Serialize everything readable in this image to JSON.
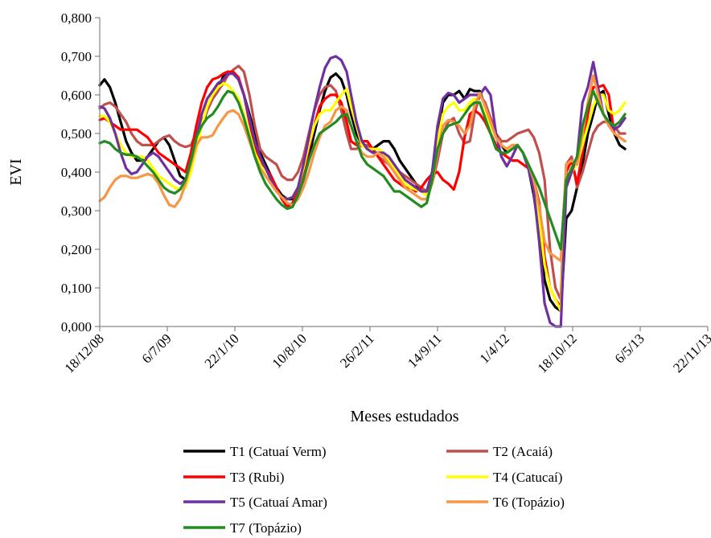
{
  "chart_data": {
    "type": "line",
    "xlabel": "Meses estudados",
    "ylabel": "EVI",
    "ylim": [
      0,
      0.8
    ],
    "yticks": [
      "0,000",
      "0,100",
      "0,200",
      "0,300",
      "0,400",
      "0,500",
      "0,600",
      "0,700",
      "0,800"
    ],
    "xlim": [
      "2008-12-18",
      "2013-11-22"
    ],
    "xticks": [
      "18/12/08",
      "6/7/09",
      "22/1/10",
      "10/8/10",
      "26/2/11",
      "14/9/11",
      "1/4/12",
      "18/10/12",
      "6/5/13",
      "22/11/13"
    ],
    "x_dates": [
      "2008-12-18",
      "2009-01-01",
      "2009-01-17",
      "2009-02-02",
      "2009-02-18",
      "2009-03-06",
      "2009-03-22",
      "2009-04-07",
      "2009-04-23",
      "2009-05-09",
      "2009-05-25",
      "2009-06-10",
      "2009-06-26",
      "2009-07-12",
      "2009-07-28",
      "2009-08-13",
      "2009-08-29",
      "2009-09-14",
      "2009-09-30",
      "2009-10-16",
      "2009-11-01",
      "2009-11-17",
      "2009-12-03",
      "2009-12-19",
      "2010-01-01",
      "2010-01-17",
      "2010-02-02",
      "2010-02-18",
      "2010-03-06",
      "2010-03-22",
      "2010-04-07",
      "2010-04-23",
      "2010-05-09",
      "2010-05-25",
      "2010-06-10",
      "2010-06-26",
      "2010-07-12",
      "2010-07-28",
      "2010-08-13",
      "2010-08-29",
      "2010-09-14",
      "2010-09-30",
      "2010-10-16",
      "2010-11-01",
      "2010-11-17",
      "2010-12-03",
      "2010-12-19",
      "2011-01-01",
      "2011-01-17",
      "2011-02-02",
      "2011-02-18",
      "2011-03-06",
      "2011-03-22",
      "2011-04-07",
      "2011-04-23",
      "2011-05-09",
      "2011-05-25",
      "2011-06-10",
      "2011-06-26",
      "2011-07-12",
      "2011-07-28",
      "2011-08-13",
      "2011-08-29",
      "2011-09-14",
      "2011-09-30",
      "2011-10-16",
      "2011-11-01",
      "2011-11-17",
      "2011-12-03",
      "2011-12-19",
      "2012-01-01",
      "2012-01-17",
      "2012-02-02",
      "2012-02-18",
      "2012-03-05",
      "2012-03-21",
      "2012-04-06",
      "2012-04-22",
      "2012-05-08",
      "2012-05-24",
      "2012-06-09",
      "2012-06-25",
      "2012-07-11",
      "2012-07-27",
      "2012-08-12",
      "2012-08-28",
      "2012-09-13",
      "2012-09-29",
      "2012-10-15",
      "2012-10-31",
      "2012-11-16",
      "2012-12-02",
      "2012-12-18",
      "2013-01-01",
      "2013-01-17",
      "2013-02-02",
      "2013-02-18",
      "2013-03-06",
      "2013-03-22",
      "2013-04-07",
      "2013-04-23",
      "2013-05-09",
      "2013-05-25"
    ],
    "series": [
      {
        "name": "T1  (Catuaí Verm)",
        "color": "#000000",
        "values": [
          0.625,
          0.64,
          0.62,
          0.58,
          0.53,
          0.48,
          0.45,
          0.43,
          0.43,
          0.44,
          0.46,
          0.48,
          0.49,
          0.47,
          0.43,
          0.39,
          0.38,
          0.42,
          0.47,
          0.52,
          0.56,
          0.59,
          0.61,
          0.65,
          0.66,
          0.655,
          0.64,
          0.6,
          0.55,
          0.5,
          0.45,
          0.42,
          0.39,
          0.36,
          0.34,
          0.33,
          0.33,
          0.35,
          0.39,
          0.44,
          0.5,
          0.56,
          0.61,
          0.645,
          0.655,
          0.64,
          0.6,
          0.55,
          0.5,
          0.47,
          0.46,
          0.46,
          0.47,
          0.48,
          0.48,
          0.46,
          0.43,
          0.41,
          0.39,
          0.37,
          0.35,
          0.35,
          0.4,
          0.49,
          0.58,
          0.6,
          0.6,
          0.61,
          0.59,
          0.615,
          0.61,
          0.61,
          0.57,
          0.54,
          0.5,
          0.47,
          0.45,
          0.46,
          0.47,
          0.45,
          0.41,
          0.34,
          0.24,
          0.12,
          0.07,
          0.05,
          0.04,
          0.28,
          0.3,
          0.36,
          0.42,
          0.5,
          0.55,
          0.6,
          0.61,
          0.55,
          0.5,
          0.47,
          0.46
        ]
      },
      {
        "name": "T2  (Acaiá)",
        "color": "#c0504d",
        "values": [
          0.565,
          0.575,
          0.58,
          0.57,
          0.55,
          0.53,
          0.5,
          0.48,
          0.47,
          0.47,
          0.47,
          0.48,
          0.49,
          0.495,
          0.48,
          0.47,
          0.465,
          0.47,
          0.5,
          0.53,
          0.56,
          0.59,
          0.61,
          0.63,
          0.65,
          0.665,
          0.675,
          0.66,
          0.6,
          0.52,
          0.46,
          0.44,
          0.43,
          0.42,
          0.39,
          0.38,
          0.38,
          0.4,
          0.44,
          0.5,
          0.56,
          0.6,
          0.62,
          0.625,
          0.61,
          0.56,
          0.5,
          0.46,
          0.46,
          0.47,
          0.47,
          0.46,
          0.44,
          0.43,
          0.42,
          0.41,
          0.4,
          0.39,
          0.38,
          0.37,
          0.36,
          0.35,
          0.37,
          0.43,
          0.5,
          0.53,
          0.54,
          0.5,
          0.475,
          0.48,
          0.55,
          0.6,
          0.58,
          0.54,
          0.5,
          0.48,
          0.48,
          0.49,
          0.5,
          0.505,
          0.51,
          0.49,
          0.45,
          0.38,
          0.2,
          0.1,
          0.07,
          0.42,
          0.44,
          0.36,
          0.4,
          0.45,
          0.5,
          0.52,
          0.53,
          0.53,
          0.52,
          0.5,
          0.5
        ]
      },
      {
        "name": "T3  (Rubi)",
        "color": "#ff0000",
        "values": [
          0.535,
          0.54,
          0.53,
          0.52,
          0.51,
          0.51,
          0.51,
          0.51,
          0.5,
          0.49,
          0.47,
          0.45,
          0.44,
          0.43,
          0.42,
          0.41,
          0.4,
          0.45,
          0.52,
          0.58,
          0.62,
          0.64,
          0.645,
          0.655,
          0.66,
          0.66,
          0.645,
          0.6,
          0.53,
          0.47,
          0.43,
          0.41,
          0.39,
          0.36,
          0.33,
          0.31,
          0.32,
          0.35,
          0.4,
          0.46,
          0.52,
          0.57,
          0.59,
          0.6,
          0.6,
          0.58,
          0.53,
          0.48,
          0.47,
          0.48,
          0.48,
          0.46,
          0.44,
          0.42,
          0.4,
          0.38,
          0.37,
          0.36,
          0.36,
          0.35,
          0.36,
          0.38,
          0.395,
          0.4,
          0.38,
          0.37,
          0.355,
          0.4,
          0.49,
          0.55,
          0.56,
          0.55,
          0.53,
          0.5,
          0.47,
          0.45,
          0.44,
          0.43,
          0.43,
          0.42,
          0.41,
          0.38,
          0.32,
          0.18,
          0.1,
          0.07,
          0.05,
          0.4,
          0.43,
          0.37,
          0.45,
          0.55,
          0.62,
          0.62,
          0.625,
          0.6,
          0.5,
          0.49,
          0.48
        ]
      },
      {
        "name": "T4   (Catucaí)",
        "color": "#ffff00",
        "values": [
          0.545,
          0.545,
          0.53,
          0.5,
          0.47,
          0.45,
          0.44,
          0.44,
          0.44,
          0.43,
          0.41,
          0.39,
          0.38,
          0.37,
          0.36,
          0.355,
          0.36,
          0.4,
          0.46,
          0.52,
          0.57,
          0.6,
          0.62,
          0.63,
          0.625,
          0.61,
          0.59,
          0.55,
          0.5,
          0.45,
          0.42,
          0.39,
          0.37,
          0.35,
          0.335,
          0.33,
          0.335,
          0.36,
          0.41,
          0.47,
          0.52,
          0.55,
          0.56,
          0.56,
          0.58,
          0.6,
          0.615,
          0.57,
          0.52,
          0.47,
          0.46,
          0.46,
          0.46,
          0.45,
          0.43,
          0.41,
          0.39,
          0.37,
          0.36,
          0.355,
          0.35,
          0.34,
          0.39,
          0.48,
          0.55,
          0.57,
          0.58,
          0.56,
          0.56,
          0.58,
          0.59,
          0.58,
          0.55,
          0.52,
          0.49,
          0.47,
          0.46,
          0.46,
          0.47,
          0.45,
          0.42,
          0.37,
          0.28,
          0.16,
          0.1,
          0.07,
          0.04,
          0.38,
          0.4,
          0.42,
          0.47,
          0.52,
          0.57,
          0.6,
          0.6,
          0.56,
          0.55,
          0.56,
          0.58
        ]
      },
      {
        "name": "T5  (Catuaí Amar)",
        "color": "#7030a0",
        "values": [
          0.57,
          0.565,
          0.54,
          0.5,
          0.45,
          0.41,
          0.395,
          0.4,
          0.42,
          0.44,
          0.45,
          0.44,
          0.42,
          0.4,
          0.38,
          0.37,
          0.38,
          0.43,
          0.49,
          0.55,
          0.59,
          0.61,
          0.63,
          0.64,
          0.655,
          0.655,
          0.64,
          0.6,
          0.54,
          0.48,
          0.44,
          0.41,
          0.38,
          0.35,
          0.335,
          0.33,
          0.335,
          0.36,
          0.42,
          0.49,
          0.56,
          0.62,
          0.67,
          0.695,
          0.7,
          0.69,
          0.66,
          0.6,
          0.53,
          0.48,
          0.46,
          0.45,
          0.45,
          0.45,
          0.44,
          0.42,
          0.4,
          0.38,
          0.37,
          0.36,
          0.35,
          0.35,
          0.4,
          0.52,
          0.59,
          0.605,
          0.6,
          0.58,
          0.59,
          0.6,
          0.6,
          0.6,
          0.62,
          0.6,
          0.5,
          0.44,
          0.415,
          0.44,
          0.47,
          0.45,
          0.41,
          0.35,
          0.22,
          0.06,
          0.01,
          0.0,
          0.0,
          0.36,
          0.4,
          0.44,
          0.58,
          0.62,
          0.685,
          0.62,
          0.55,
          0.53,
          0.51,
          0.52,
          0.54
        ]
      },
      {
        "name": "T6  (Topázio)",
        "color": "#f79646",
        "values": [
          0.325,
          0.335,
          0.36,
          0.38,
          0.39,
          0.39,
          0.385,
          0.385,
          0.39,
          0.395,
          0.39,
          0.37,
          0.34,
          0.315,
          0.31,
          0.33,
          0.37,
          0.42,
          0.47,
          0.49,
          0.49,
          0.495,
          0.52,
          0.54,
          0.555,
          0.56,
          0.55,
          0.52,
          0.48,
          0.44,
          0.41,
          0.39,
          0.37,
          0.35,
          0.335,
          0.32,
          0.315,
          0.33,
          0.36,
          0.4,
          0.45,
          0.49,
          0.52,
          0.53,
          0.56,
          0.57,
          0.56,
          0.52,
          0.48,
          0.45,
          0.44,
          0.44,
          0.45,
          0.44,
          0.42,
          0.4,
          0.38,
          0.36,
          0.35,
          0.34,
          0.33,
          0.33,
          0.37,
          0.45,
          0.52,
          0.535,
          0.53,
          0.52,
          0.5,
          0.52,
          0.57,
          0.605,
          0.57,
          0.53,
          0.49,
          0.47,
          0.46,
          0.47,
          0.47,
          0.45,
          0.42,
          0.38,
          0.31,
          0.22,
          0.19,
          0.18,
          0.17,
          0.42,
          0.43,
          0.42,
          0.5,
          0.58,
          0.65,
          0.6,
          0.55,
          0.52,
          0.5,
          0.49,
          0.48
        ]
      },
      {
        "name": "T7  (Topázio)",
        "color": "#228b22",
        "values": [
          0.475,
          0.48,
          0.475,
          0.46,
          0.45,
          0.445,
          0.445,
          0.44,
          0.43,
          0.415,
          0.4,
          0.38,
          0.36,
          0.35,
          0.345,
          0.355,
          0.38,
          0.43,
          0.49,
          0.52,
          0.54,
          0.55,
          0.57,
          0.595,
          0.61,
          0.605,
          0.58,
          0.54,
          0.49,
          0.44,
          0.4,
          0.37,
          0.35,
          0.33,
          0.315,
          0.305,
          0.31,
          0.34,
          0.38,
          0.43,
          0.47,
          0.5,
          0.51,
          0.52,
          0.53,
          0.545,
          0.55,
          0.52,
          0.48,
          0.44,
          0.42,
          0.41,
          0.4,
          0.39,
          0.37,
          0.35,
          0.35,
          0.34,
          0.33,
          0.32,
          0.31,
          0.32,
          0.38,
          0.46,
          0.5,
          0.52,
          0.525,
          0.53,
          0.55,
          0.57,
          0.58,
          0.58,
          0.54,
          0.5,
          0.46,
          0.45,
          0.45,
          0.46,
          0.47,
          0.45,
          0.42,
          0.39,
          0.36,
          0.32,
          0.28,
          0.24,
          0.2,
          0.38,
          0.41,
          0.44,
          0.52,
          0.57,
          0.61,
          0.58,
          0.55,
          0.53,
          0.52,
          0.53,
          0.55
        ]
      }
    ]
  }
}
